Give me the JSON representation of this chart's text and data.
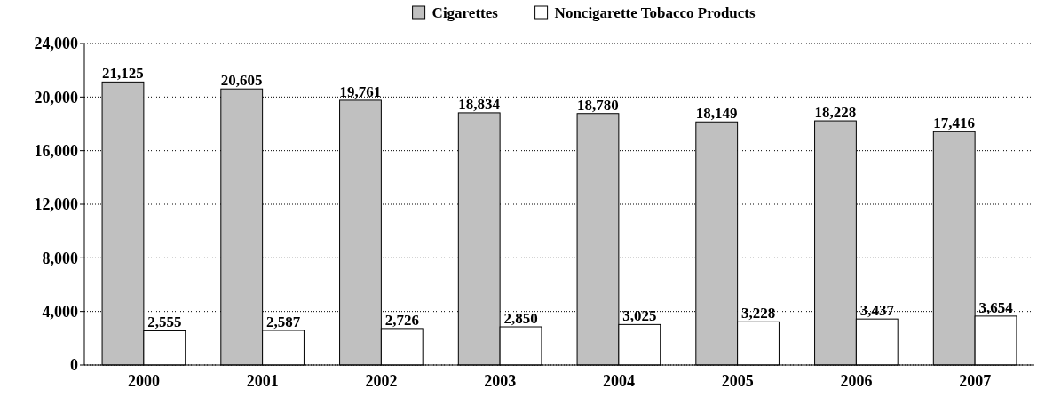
{
  "chart_data": {
    "type": "bar",
    "categories": [
      "2000",
      "2001",
      "2002",
      "2003",
      "2004",
      "2005",
      "2006",
      "2007"
    ],
    "series": [
      {
        "name": "Cigarettes",
        "color": "#c0c0c0",
        "values": [
          21125,
          20605,
          19761,
          18834,
          18780,
          18149,
          18228,
          17416
        ],
        "value_labels": [
          "21,125",
          "20,605",
          "19,761",
          "18,834",
          "18,780",
          "18,149",
          "18,228",
          "17,416"
        ]
      },
      {
        "name": "Noncigarette Tobacco Products",
        "color": "#ffffff",
        "values": [
          2555,
          2587,
          2726,
          2850,
          3025,
          3228,
          3437,
          3654
        ],
        "value_labels": [
          "2,555",
          "2,587",
          "2,726",
          "2,850",
          "3,025",
          "3,228",
          "3,437",
          "3,654"
        ]
      }
    ],
    "ylim": [
      0,
      24000
    ],
    "yticks": [
      {
        "value": 0,
        "label": "0"
      },
      {
        "value": 4000,
        "label": "4,000"
      },
      {
        "value": 8000,
        "label": "8,000"
      },
      {
        "value": 12000,
        "label": "12,000"
      },
      {
        "value": 16000,
        "label": "16,000"
      },
      {
        "value": 20000,
        "label": "20,000"
      },
      {
        "value": 24000,
        "label": "24,000"
      }
    ],
    "grid": "y",
    "legend": "top"
  }
}
